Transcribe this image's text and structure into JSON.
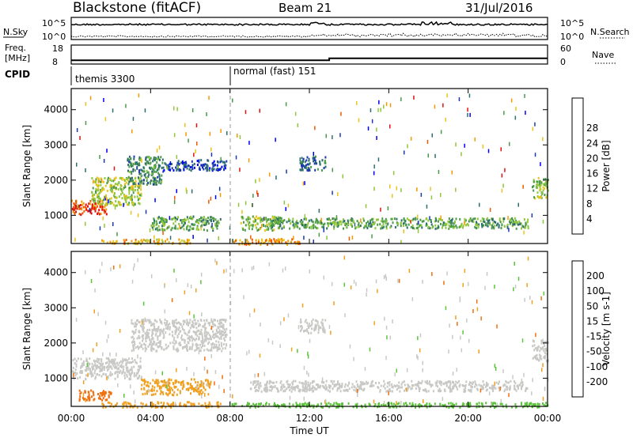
{
  "header": {
    "station": "Blackstone (fitACF)",
    "beam": "Beam 21",
    "date": "31/Jul/2016"
  },
  "noise_panel": {
    "left_label": "N.Sky",
    "right_label": "N.Search",
    "left_ticks": [
      "10^5",
      "10^0"
    ],
    "right_ticks": [
      "10^5",
      "10^0"
    ]
  },
  "freq_panel": {
    "freq_label_line1": "Freq.",
    "freq_label_line2": "[MHz]",
    "nave_label": "Nave",
    "freq_ticks": [
      "18",
      "8"
    ],
    "nave_ticks": [
      "60",
      "0"
    ]
  },
  "cpid_panel": {
    "label": "CPID",
    "segments": [
      {
        "label": "themis 3300",
        "start_hour": 0
      },
      {
        "label": "normal (fast) 151",
        "start_hour": 8
      }
    ]
  },
  "power_panel": {
    "ylabel": "Slant Range [km]",
    "yticks": [
      "1000",
      "2000",
      "3000",
      "4000"
    ],
    "colorbar_label": "Power [dB]",
    "colorbar_ticks": [
      "4",
      "8",
      "12",
      "16",
      "20",
      "24",
      "28"
    ],
    "colors": [
      "#0000ff",
      "#1c3ab0",
      "#2e6d6d",
      "#4a9a4a",
      "#8fc63a",
      "#e8c41a",
      "#f29b00",
      "#f05a00",
      "#e01010"
    ]
  },
  "velocity_panel": {
    "ylabel": "Slant Range [km]",
    "yticks": [
      "1000",
      "2000",
      "3000",
      "4000"
    ],
    "colorbar_label": "Velocity [m s-1]",
    "colorbar_ticks": [
      "200",
      "100",
      "50",
      "15",
      "-15",
      "-50",
      "-100",
      "-200"
    ],
    "colors": [
      "#1a1ad6",
      "#2f5aa0",
      "#2e8a5a",
      "#5cc43a",
      "#c8c8c4",
      "#f0a020",
      "#f07010",
      "#f04010",
      "#e01010"
    ]
  },
  "time_axis": {
    "ticks": [
      "00:00",
      "04:00",
      "08:00",
      "12:00",
      "16:00",
      "20:00",
      "00:00"
    ],
    "label": "Time UT"
  },
  "chart_data": {
    "type": "heatmap",
    "x_axis": "Time UT (hours)",
    "xlim": [
      0,
      24
    ],
    "ylim": [
      200,
      4600
    ],
    "freq_mhz": [
      {
        "from_hour": 0,
        "to_hour": 13,
        "value": 10
      },
      {
        "from_hour": 13,
        "to_hour": 24,
        "value": 11
      }
    ],
    "power_regions": [
      {
        "t0": 0.0,
        "t1": 1.8,
        "r0": 1050,
        "r1": 1450,
        "power_db": 26
      },
      {
        "t0": 1.0,
        "t1": 3.5,
        "r0": 1300,
        "r1": 2100,
        "power_db": 16
      },
      {
        "t0": 2.8,
        "t1": 4.6,
        "r0": 1900,
        "r1": 2700,
        "power_db": 10
      },
      {
        "t0": 4.5,
        "t1": 7.8,
        "r0": 2300,
        "r1": 2600,
        "power_db": 6
      },
      {
        "t0": 1.5,
        "t1": 6.0,
        "r0": 220,
        "r1": 350,
        "power_db": 20
      },
      {
        "t0": 4.0,
        "t1": 7.5,
        "r0": 600,
        "r1": 1000,
        "power_db": 12
      },
      {
        "t0": 8.0,
        "t1": 11.5,
        "r0": 200,
        "r1": 360,
        "power_db": 22
      },
      {
        "t0": 8.5,
        "t1": 10.5,
        "r0": 600,
        "r1": 1000,
        "power_db": 14
      },
      {
        "t0": 10.0,
        "t1": 23.0,
        "r0": 650,
        "r1": 950,
        "power_db": 12
      },
      {
        "t0": 11.5,
        "t1": 12.8,
        "r0": 2300,
        "r1": 2700,
        "power_db": 8
      },
      {
        "t0": 23.2,
        "t1": 24.0,
        "r0": 1500,
        "r1": 2100,
        "power_db": 14
      }
    ],
    "velocity_regions": [
      {
        "t0": 0.0,
        "t1": 3.5,
        "r0": 1000,
        "r1": 1600,
        "velocity": 0
      },
      {
        "t0": 0.3,
        "t1": 2.0,
        "r0": 400,
        "r1": 700,
        "velocity": -60
      },
      {
        "t0": 1.5,
        "t1": 7.5,
        "r0": 200,
        "r1": 350,
        "velocity": -40
      },
      {
        "t0": 3.0,
        "t1": 7.8,
        "r0": 1800,
        "r1": 2700,
        "velocity": 0
      },
      {
        "t0": 3.5,
        "t1": 7.0,
        "r0": 550,
        "r1": 1000,
        "velocity": -30
      },
      {
        "t0": 8.0,
        "t1": 24.0,
        "r0": 200,
        "r1": 330,
        "velocity": 30
      },
      {
        "t0": 9.0,
        "t1": 23.0,
        "r0": 650,
        "r1": 950,
        "velocity": 0
      },
      {
        "t0": 11.5,
        "t1": 12.8,
        "r0": 2300,
        "r1": 2700,
        "velocity": 0
      },
      {
        "t0": 23.2,
        "t1": 24.0,
        "r0": 1500,
        "r1": 2100,
        "velocity": 0
      }
    ]
  }
}
